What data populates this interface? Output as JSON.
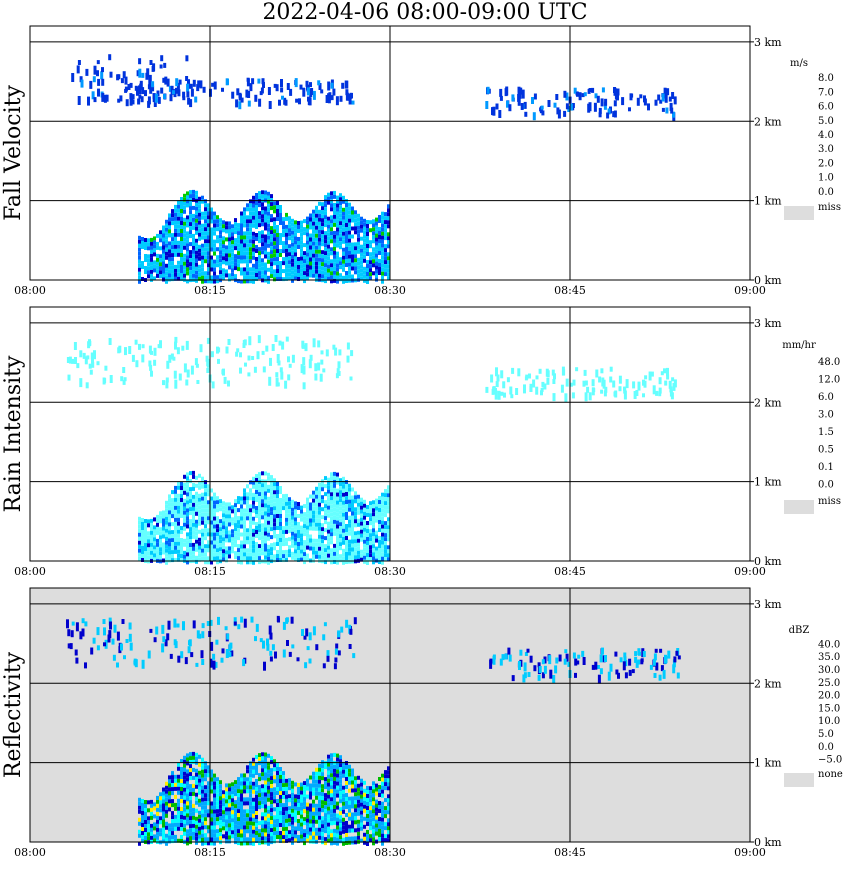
{
  "title": "2022-04-06   08:00-09:00 UTC",
  "time_ticks": [
    "08:00",
    "08:15",
    "08:30",
    "08:45",
    "09:00"
  ],
  "height_ticks": [
    "0 km",
    "1 km",
    "2 km",
    "3 km"
  ],
  "panels": [
    {
      "id": "fall-velocity",
      "ylabel": "Fall Velocity",
      "background": "#ffffff",
      "scale_unit": "m/s",
      "scale_labels": [
        "8.0",
        "7.0",
        "6.0",
        "5.0",
        "4.0",
        "3.0",
        "2.0",
        "1.0",
        "0.0"
      ],
      "scale_colors": [
        "#ff00ff",
        "#ff0000",
        "#ff6600",
        "#ffcc00",
        "#ccff00",
        "#00cc00",
        "#00ff99",
        "#00ccff",
        "#0066ff",
        "#0000cc"
      ],
      "missing_label": "miss",
      "missing_color": "#dddddd"
    },
    {
      "id": "rain-intensity",
      "ylabel": "Rain Intensity",
      "background": "#ffffff",
      "scale_unit": "mm/hr",
      "scale_labels": [
        "48.0",
        "12.0",
        "6.0",
        "3.0",
        "1.5",
        "0.5",
        "0.1",
        "0.0"
      ],
      "scale_colors": [
        "#000000",
        "#550044",
        "#aa33aa",
        "#cc00cc",
        "#ff0099",
        "#ff0000",
        "#ff6600",
        "#ffdd00",
        "#99ff33",
        "#33cc33",
        "#0000cc",
        "#0066ff",
        "#00ccff",
        "#66ffff",
        "#ffffff"
      ],
      "missing_label": "miss",
      "missing_color": "#dddddd"
    },
    {
      "id": "reflectivity",
      "ylabel": "Reflectivity",
      "background": "#dddddd",
      "scale_unit": "dBZ",
      "scale_labels": [
        "40.0",
        "35.0",
        "30.0",
        "25.0",
        "20.0",
        "15.0",
        "10.0",
        "5.0",
        "0.0",
        "−5.0"
      ],
      "scale_colors": [
        "#aa44aa",
        "#cc00cc",
        "#aa0088",
        "#ff0000",
        "#ff6600",
        "#ffee00",
        "#00bb00",
        "#00ffff",
        "#00aaff",
        "#0000cc",
        "#ffffff"
      ],
      "missing_label": "none",
      "missing_color": "#dddddd"
    }
  ],
  "chart_data": [
    {
      "type": "heatmap",
      "title": "2022-04-06   08:00-09:00 UTC",
      "xlabel": "",
      "ylabel": "Fall Velocity",
      "x_range": [
        "08:00",
        "09:00"
      ],
      "ylim": [
        0,
        3.2
      ],
      "y_unit": "km",
      "colorbar_unit": "m/s",
      "grid": true,
      "echoes": [
        {
          "t_start": 8.05,
          "t_end": 8.22,
          "h_bottom": 2.25,
          "h_top": 2.85,
          "value": 1.0,
          "kind": "scattered"
        },
        {
          "t_start": 8.13,
          "t_end": 8.45,
          "h_bottom": 2.25,
          "h_top": 2.55,
          "value": 1.0,
          "kind": "scattered"
        },
        {
          "t_start": 8.63,
          "t_end": 8.9,
          "h_bottom": 2.1,
          "h_top": 2.45,
          "value": 1.0,
          "kind": "scattered"
        },
        {
          "t_start": 8.15,
          "t_end": 8.5,
          "h_bottom": 0.0,
          "h_top": 1.25,
          "value": 2.0,
          "kind": "convective"
        }
      ]
    },
    {
      "type": "heatmap",
      "title": "",
      "xlabel": "",
      "ylabel": "Rain Intensity",
      "x_range": [
        "08:00",
        "09:00"
      ],
      "ylim": [
        0,
        3.2
      ],
      "y_unit": "km",
      "colorbar_unit": "mm/hr",
      "grid": true,
      "echoes": [
        {
          "t_start": 8.05,
          "t_end": 8.45,
          "h_bottom": 2.25,
          "h_top": 2.85,
          "value": 0.1,
          "kind": "scattered"
        },
        {
          "t_start": 8.63,
          "t_end": 8.9,
          "h_bottom": 2.1,
          "h_top": 2.45,
          "value": 0.1,
          "kind": "scattered"
        },
        {
          "t_start": 8.15,
          "t_end": 8.5,
          "h_bottom": 0.0,
          "h_top": 1.25,
          "value": 0.5,
          "kind": "convective"
        }
      ]
    },
    {
      "type": "heatmap",
      "title": "",
      "xlabel": "",
      "ylabel": "Reflectivity",
      "x_range": [
        "08:00",
        "09:00"
      ],
      "ylim": [
        0,
        3.2
      ],
      "y_unit": "km",
      "colorbar_unit": "dBZ",
      "grid": true,
      "echoes": [
        {
          "t_start": 8.05,
          "t_end": 8.45,
          "h_bottom": 2.25,
          "h_top": 2.85,
          "value": 5.0,
          "kind": "scattered"
        },
        {
          "t_start": 8.63,
          "t_end": 8.9,
          "h_bottom": 2.1,
          "h_top": 2.45,
          "value": 0.0,
          "kind": "scattered"
        },
        {
          "t_start": 8.15,
          "t_end": 8.5,
          "h_bottom": 0.0,
          "h_top": 1.25,
          "value": 15.0,
          "kind": "convective"
        }
      ]
    }
  ]
}
